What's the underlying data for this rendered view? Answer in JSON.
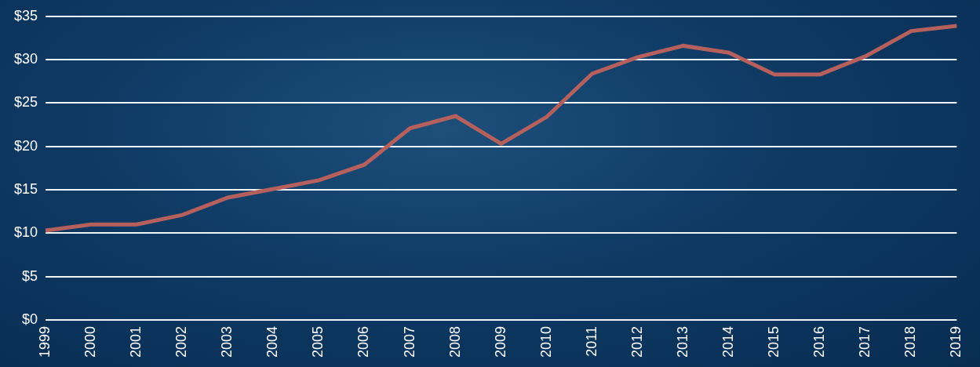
{
  "chart_data": {
    "type": "line",
    "categories": [
      "1999",
      "2000",
      "2001",
      "2002",
      "2003",
      "2004",
      "2005",
      "2006",
      "2007",
      "2008",
      "2009",
      "2010",
      "2011",
      "2012",
      "2013",
      "2014",
      "2015",
      "2016",
      "2017",
      "2018",
      "2019"
    ],
    "values": [
      10.3,
      11,
      11,
      12.1,
      14.1,
      15.1,
      16.1,
      17.9,
      22.1,
      23.5,
      20.3,
      23.4,
      28.4,
      30.3,
      31.6,
      30.8,
      28.3,
      28.3,
      30.4,
      33.3,
      33.9
    ],
    "color": "#b5605c",
    "ylim": [
      0,
      35
    ],
    "yticks": [
      {
        "value": 0,
        "label": "$0"
      },
      {
        "value": 5,
        "label": "$5"
      },
      {
        "value": 10,
        "label": "$10"
      },
      {
        "value": 15,
        "label": "$15"
      },
      {
        "value": 20,
        "label": "$20"
      },
      {
        "value": 25,
        "label": "$25"
      },
      {
        "value": 30,
        "label": "$30"
      },
      {
        "value": 35,
        "label": "$35"
      }
    ],
    "grid": true
  }
}
